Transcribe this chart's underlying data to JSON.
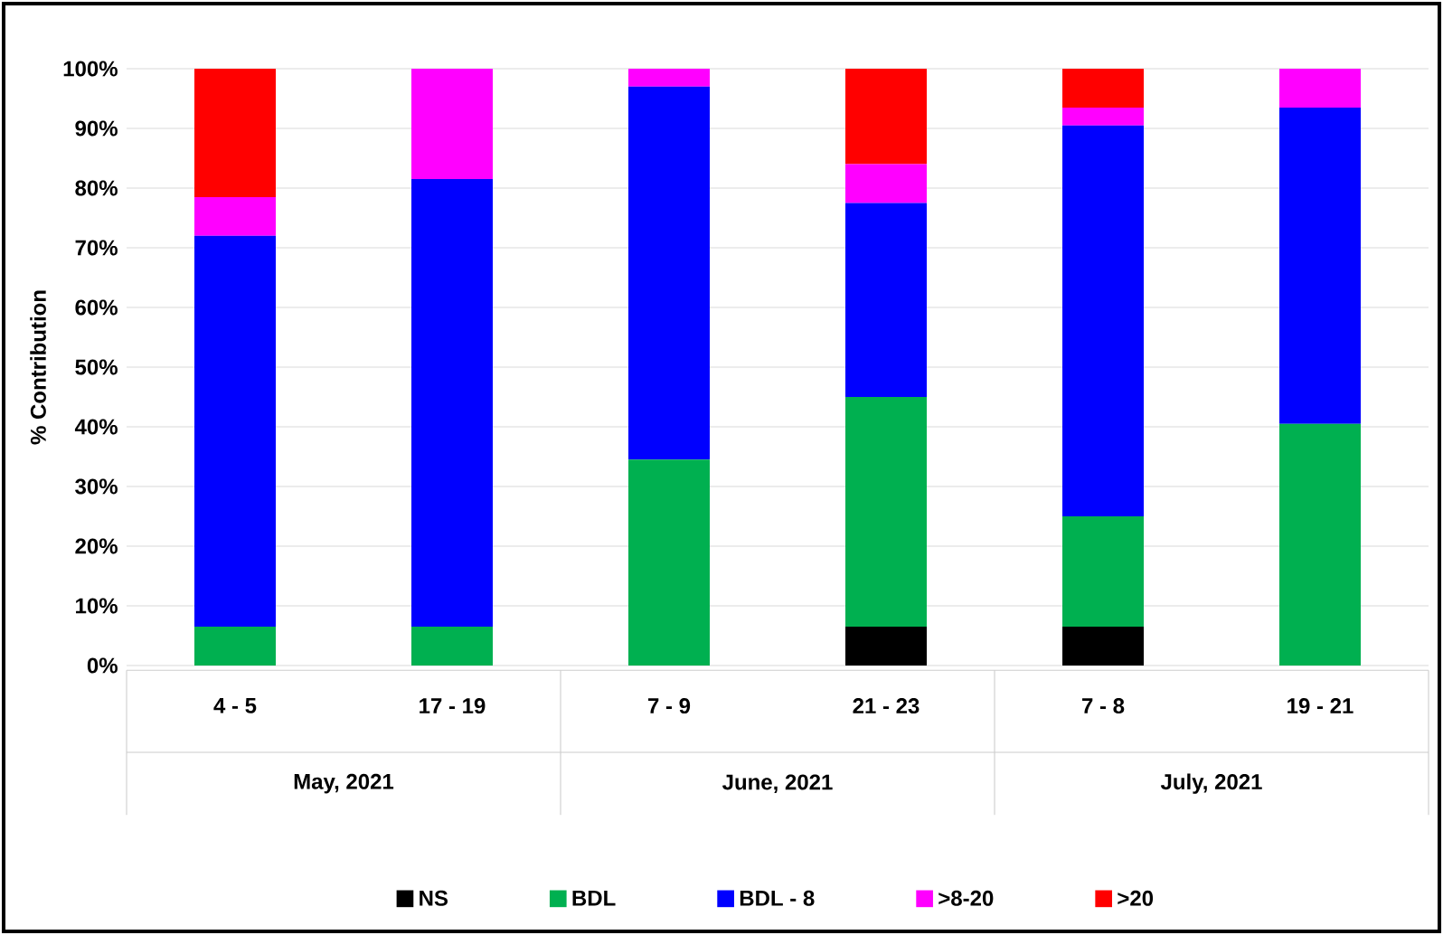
{
  "chart_data": {
    "type": "bar",
    "stacked": true,
    "ylabel": "% Contribution",
    "categories": [
      "4 - 5",
      "17 - 19",
      "7 - 9",
      "21 - 23",
      "7 - 8",
      "19 - 21"
    ],
    "annotations": [
      "May, 2021",
      "June, 2021",
      "July, 2021"
    ],
    "series": [
      {
        "name": "NS",
        "color": "#000000",
        "values": [
          0,
          0,
          0,
          6.5,
          6.5,
          0
        ]
      },
      {
        "name": "BDL",
        "color": "#00b050",
        "values": [
          6.5,
          6.5,
          34.5,
          38.5,
          18.5,
          40.5
        ]
      },
      {
        "name": "BDL - 8",
        "color": "#0000ff",
        "values": [
          65.5,
          75,
          62.5,
          32.5,
          65.5,
          53
        ]
      },
      {
        "name": ">8-20",
        "color": "#ff00ff",
        "values": [
          6.5,
          18.5,
          3,
          6.5,
          3,
          6.5
        ]
      },
      {
        "name": ">20",
        "color": "#ff0000",
        "values": [
          21.5,
          0,
          0,
          16,
          6.5,
          0
        ]
      }
    ],
    "ylim": [
      0,
      100
    ],
    "yticks": [
      {
        "value": 0,
        "label": "0%"
      },
      {
        "value": 10,
        "label": "10%"
      },
      {
        "value": 20,
        "label": "20%"
      },
      {
        "value": 30,
        "label": "30%"
      },
      {
        "value": 40,
        "label": "40%"
      },
      {
        "value": 50,
        "label": "50%"
      },
      {
        "value": 60,
        "label": "60%"
      },
      {
        "value": 70,
        "label": "70%"
      },
      {
        "value": 80,
        "label": "80%"
      },
      {
        "value": 90,
        "label": "90%"
      },
      {
        "value": 100,
        "label": "100%"
      }
    ],
    "grid": "y",
    "legend": "bottom"
  }
}
